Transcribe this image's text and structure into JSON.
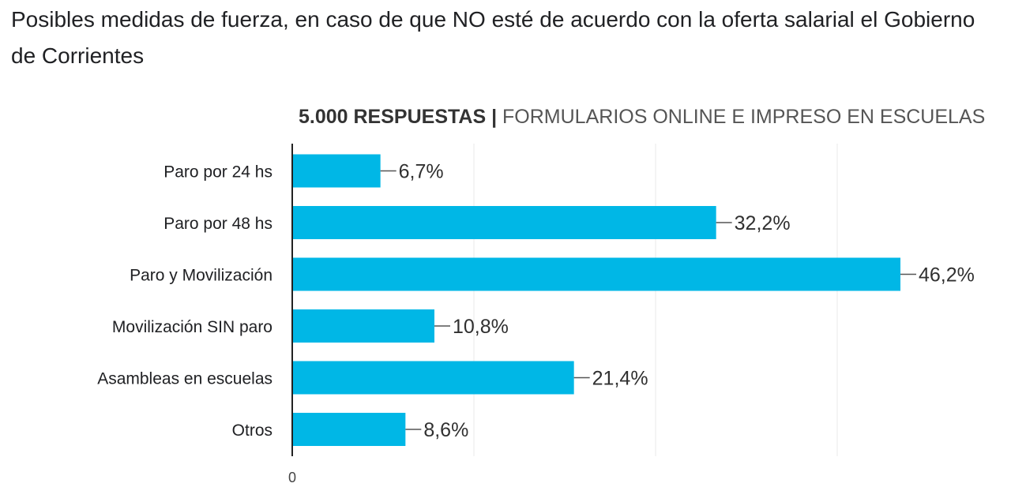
{
  "title": "Posibles medidas de fuerza, en caso de que NO esté de acuerdo con la oferta salarial el Gobierno de Corrientes",
  "subtitle": {
    "bold": "5.000 RESPUESTAS |",
    "light": "FORMULARIOS ONLINE E IMPRESO EN ESCUELAS"
  },
  "colors": {
    "bar": "#00b7e6",
    "grid": "#e8e8e8",
    "axis": "#222222"
  },
  "chart_data": {
    "type": "bar",
    "orientation": "horizontal",
    "categories": [
      "Paro por 24 hs",
      "Paro por 48 hs",
      "Paro y Movilización",
      "Movilización SIN paro",
      "Asambleas en escuelas",
      "Otros"
    ],
    "values": [
      6.7,
      32.2,
      46.2,
      10.8,
      21.4,
      8.6
    ],
    "data_labels": [
      "6,7%",
      "32,2%",
      "46,2%",
      "10,8%",
      "21,4%",
      "8,6%"
    ],
    "unit": "%",
    "xlim": [
      0,
      54.6
    ],
    "x_ticks": [
      0
    ],
    "x_tick_labels": [
      "0"
    ],
    "grid": true,
    "legend": false
  }
}
